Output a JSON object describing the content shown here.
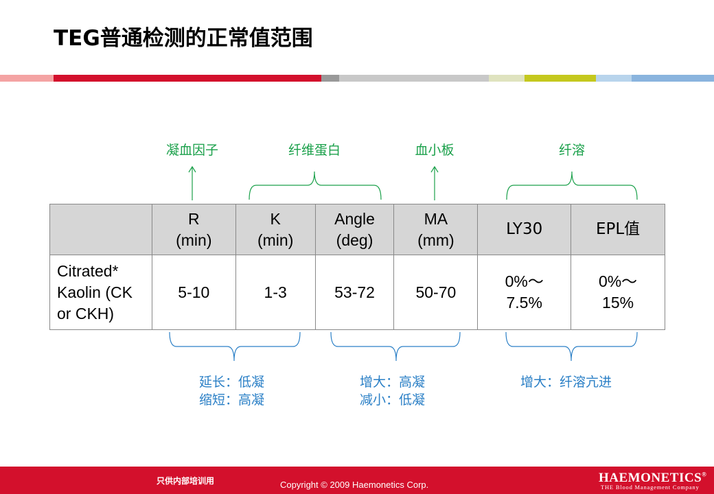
{
  "slide": {
    "title": "TEG普通检测的正常值范围"
  },
  "colors": {
    "accent_red": "#d3102c",
    "top_label_green": "#1aa04a",
    "bottom_label_blue": "#2a7fc6",
    "header_gray": "#d6d6d6",
    "band": [
      "#f4a3a3",
      "#d3102c",
      "#999999",
      "#c8c8c8",
      "#dfe3bf",
      "#c4c81e",
      "#b8d4ec",
      "#8ab4de"
    ]
  },
  "top_labels": {
    "coagulation_factor": "凝血因子",
    "fibrinogen": "纤维蛋白",
    "platelet": "血小板",
    "fibrinolysis": "纤溶"
  },
  "table": {
    "headers": [
      {
        "line1": "R",
        "line2": "(min)"
      },
      {
        "line1": "K",
        "line2": "(min)"
      },
      {
        "line1": "Angle",
        "line2": "(deg)"
      },
      {
        "line1": "MA",
        "line2": "(mm)"
      },
      {
        "line1": "LY30",
        "line2": ""
      },
      {
        "line1": "EPL值",
        "line2": ""
      }
    ],
    "row": {
      "label_lines": [
        "Citrated*",
        "Kaolin (CK",
        "or CKH)"
      ],
      "values": [
        {
          "line1": "5-10",
          "line2": ""
        },
        {
          "line1": "1-3",
          "line2": ""
        },
        {
          "line1": "53-72",
          "line2": ""
        },
        {
          "line1": "50-70",
          "line2": ""
        },
        {
          "line1": "0%～",
          "line2": "7.5%"
        },
        {
          "line1": "0%～",
          "line2": "15%"
        }
      ]
    }
  },
  "bottom_labels": {
    "left_line1": "延长：低凝",
    "left_line2": "缩短：高凝",
    "middle_line1": "增大：高凝",
    "middle_line2": "减小：低凝",
    "right_line1": "增大：纤溶亢进"
  },
  "footer": {
    "internal_note": "只供内部培训用",
    "copyright": "Copyright © 2009 Haemonetics Corp.",
    "brand": "HAEMONETICS",
    "brand_mark": "®",
    "brand_tagline": "THE Blood Management Company"
  }
}
